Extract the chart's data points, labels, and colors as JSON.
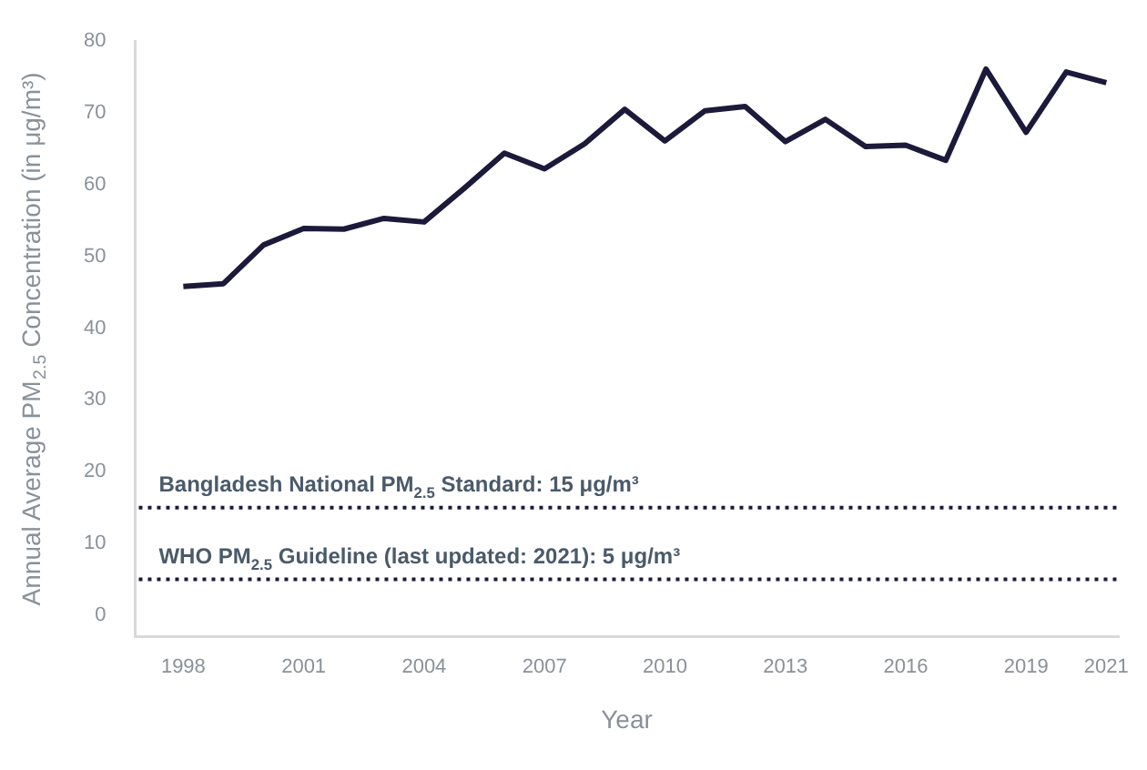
{
  "chart_data": {
    "type": "line",
    "xlabel": "Year",
    "ylabel": "Annual Average PM$_{2.5}$ Concentration (in μg/m³)",
    "x": [
      1998,
      1999,
      2000,
      2001,
      2002,
      2003,
      2004,
      2005,
      2006,
      2007,
      2008,
      2009,
      2010,
      2011,
      2012,
      2013,
      2014,
      2015,
      2016,
      2017,
      2018,
      2019,
      2020,
      2021
    ],
    "series": [
      {
        "color": "#1c1a3a",
        "values": [
          45.8,
          46.2,
          51.6,
          53.9,
          53.8,
          55.3,
          54.8,
          59.5,
          64.4,
          62.2,
          65.7,
          70.5,
          66.1,
          70.3,
          70.9,
          66,
          69.1,
          65.3,
          65.5,
          63.4,
          76.1,
          67.3,
          75.7,
          74.2
        ]
      }
    ],
    "xlim": [
      1996.8,
      2021.3
    ],
    "xticks": [
      1998,
      2001,
      2004,
      2007,
      2010,
      2013,
      2016,
      2019,
      2021
    ],
    "ylim": [
      -3,
      80
    ],
    "yticks": [
      0,
      10,
      20,
      30,
      40,
      50,
      60,
      70,
      80
    ],
    "grid": false,
    "legend": false,
    "marker": "none",
    "line_style": "solid",
    "ref_lines": [
      {
        "axis": "y",
        "value": 15,
        "label": "Bangladesh National PM$_{2.5}$ Standard: 15 μg/m³",
        "color": "#1c1a3a",
        "line_style": "dotted"
      },
      {
        "axis": "y",
        "value": 5,
        "label": "WHO PM$_{2.5}$ Guideline (last updated: 2021): 5 μg/m³",
        "color": "#1c1a3a",
        "line_style": "dotted"
      }
    ]
  }
}
